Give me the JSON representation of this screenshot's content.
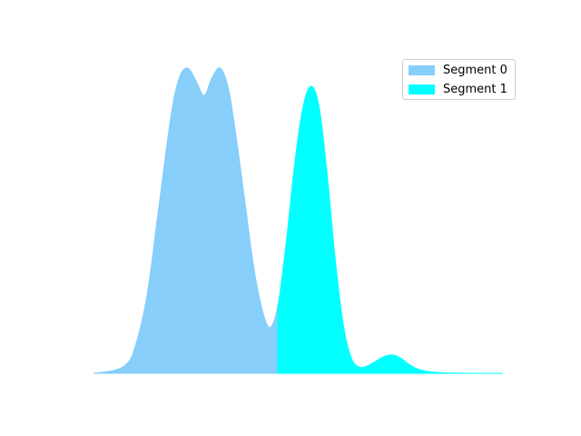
{
  "chart_data": {
    "type": "area",
    "title": "",
    "xlabel": "",
    "ylabel": "",
    "axes_visible": false,
    "grid": false,
    "legend_position": "top-right",
    "x_domain": [
      0,
      100
    ],
    "y_domain": [
      0,
      1.0
    ],
    "split_x": 45,
    "series": [
      {
        "name": "Segment 0",
        "color": "#87CEFA",
        "x_range": [
          0,
          45
        ]
      },
      {
        "name": "Segment 1",
        "color": "#00FFFF",
        "x_range": [
          45,
          100
        ]
      }
    ],
    "curve_points": {
      "x": [
        0,
        5,
        8,
        10,
        13,
        16,
        19,
        21,
        23,
        25,
        27,
        29,
        31,
        33,
        35,
        37,
        39,
        41,
        43,
        45,
        47,
        49,
        51,
        53,
        55,
        57,
        59,
        61,
        63,
        65,
        67,
        69,
        71,
        73,
        75,
        77,
        79,
        81,
        83,
        85,
        87,
        89,
        91,
        93,
        95,
        100
      ],
      "y": [
        0.0,
        0.01,
        0.03,
        0.08,
        0.25,
        0.55,
        0.85,
        0.97,
        1.0,
        0.96,
        0.91,
        0.97,
        1.0,
        0.93,
        0.76,
        0.56,
        0.36,
        0.22,
        0.15,
        0.22,
        0.42,
        0.67,
        0.86,
        0.94,
        0.88,
        0.66,
        0.38,
        0.16,
        0.05,
        0.02,
        0.025,
        0.04,
        0.055,
        0.06,
        0.05,
        0.03,
        0.015,
        0.008,
        0.004,
        0.002,
        0.001,
        0.0005,
        0.0002,
        0.0001,
        0.0,
        0.0
      ]
    }
  }
}
